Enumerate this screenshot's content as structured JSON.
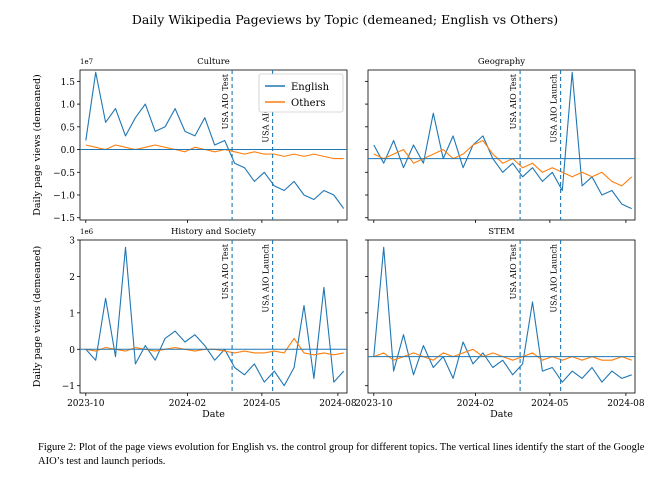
{
  "figure": {
    "suptitle": "Daily Wikipedia Pageviews by Topic (demeaned; English vs Others)",
    "caption": "Figure 2: Plot of the page views evolution for English vs. the control group for different topics. The vertical lines identify the start of the Google AIO’s test and launch periods.",
    "colors": {
      "english": "#1f77b4",
      "others": "#ff7f0e",
      "axis": "#000000"
    }
  },
  "chart_data": [
    {
      "type": "line",
      "title": "Culture",
      "xlabel": "",
      "ylabel": "Daily page views (demeaned)",
      "offset_text": "1e7",
      "xlim": [
        "2023-09-24",
        "2024-08-12"
      ],
      "ylim": [
        -1.55,
        1.75
      ],
      "yticks": [
        -1.5,
        -1.0,
        -0.5,
        0.0,
        0.5,
        1.0,
        1.5
      ],
      "ytick_labels": [
        "−1.5",
        "−1.0",
        "−0.5",
        "0.0",
        "0.5",
        "1.0",
        "1.5"
      ],
      "xticks": [
        "2023-10-01",
        "2024-02-01",
        "2024-05-01",
        "2024-08-01"
      ],
      "xtick_labels": [
        "2023-10",
        "2024-02",
        "2024-05",
        "2024-08"
      ],
      "show_xtick_labels": false,
      "hline": 0.0,
      "vlines": [
        {
          "x": "2024-03-26",
          "label": "USA AIO Test"
        },
        {
          "x": "2024-05-14",
          "label": "USA AIO Launch"
        }
      ],
      "legend": {
        "position": "upper-right",
        "entries": [
          "English",
          "Others"
        ]
      },
      "x": [
        "2023-10-01",
        "2023-10-13",
        "2023-10-25",
        "2023-11-06",
        "2023-11-18",
        "2023-11-30",
        "2023-12-12",
        "2023-12-24",
        "2024-01-05",
        "2024-01-17",
        "2024-01-29",
        "2024-02-10",
        "2024-02-22",
        "2024-03-05",
        "2024-03-17",
        "2024-03-29",
        "2024-04-10",
        "2024-04-22",
        "2024-05-04",
        "2024-05-16",
        "2024-05-28",
        "2024-06-09",
        "2024-06-21",
        "2024-07-03",
        "2024-07-15",
        "2024-07-27",
        "2024-08-08"
      ],
      "series": [
        {
          "name": "English",
          "values": [
            0.2,
            1.7,
            0.6,
            0.9,
            0.3,
            0.7,
            1.0,
            0.4,
            0.5,
            0.9,
            0.4,
            0.3,
            0.7,
            0.1,
            0.2,
            -0.3,
            -0.4,
            -0.7,
            -0.5,
            -0.8,
            -0.9,
            -0.7,
            -1.0,
            -1.1,
            -0.9,
            -1.0,
            -1.3
          ]
        },
        {
          "name": "Others",
          "values": [
            0.1,
            0.05,
            0.0,
            0.1,
            0.05,
            0.0,
            0.05,
            0.1,
            0.05,
            0.0,
            -0.05,
            0.05,
            0.0,
            -0.05,
            0.0,
            -0.05,
            -0.1,
            -0.05,
            -0.1,
            -0.1,
            -0.15,
            -0.1,
            -0.15,
            -0.1,
            -0.15,
            -0.2,
            -0.2
          ]
        }
      ]
    },
    {
      "type": "line",
      "title": "Geography",
      "xlabel": "",
      "ylabel": "",
      "offset_text": "",
      "xlim": [
        "2023-09-24",
        "2024-08-12"
      ],
      "ylim": [
        -1.55,
        1.75
      ],
      "yticks": [],
      "ytick_labels": [],
      "xticks": [
        "2023-10-01",
        "2024-02-01",
        "2024-05-01",
        "2024-08-01"
      ],
      "xtick_labels": [
        "2023-10",
        "2024-02",
        "2024-05",
        "2024-08"
      ],
      "show_xtick_labels": false,
      "hline": -0.2,
      "vlines": [
        {
          "x": "2024-03-26",
          "label": "USA AIO Test"
        },
        {
          "x": "2024-05-14",
          "label": "USA AIO Launch"
        }
      ],
      "legend": null,
      "x": [
        "2023-10-01",
        "2023-10-13",
        "2023-10-25",
        "2023-11-06",
        "2023-11-18",
        "2023-11-30",
        "2023-12-12",
        "2023-12-24",
        "2024-01-05",
        "2024-01-17",
        "2024-01-29",
        "2024-02-10",
        "2024-02-22",
        "2024-03-05",
        "2024-03-17",
        "2024-03-29",
        "2024-04-10",
        "2024-04-22",
        "2024-05-04",
        "2024-05-16",
        "2024-05-28",
        "2024-06-09",
        "2024-06-21",
        "2024-07-03",
        "2024-07-15",
        "2024-07-27",
        "2024-08-08"
      ],
      "series": [
        {
          "name": "English",
          "values": [
            0.1,
            -0.3,
            0.2,
            -0.4,
            0.1,
            -0.3,
            0.8,
            -0.2,
            0.3,
            -0.4,
            0.1,
            0.3,
            -0.2,
            -0.5,
            -0.3,
            -0.6,
            -0.4,
            -0.7,
            -0.5,
            -0.9,
            1.7,
            -0.8,
            -0.6,
            -1.0,
            -0.9,
            -1.2,
            -1.3
          ]
        },
        {
          "name": "Others",
          "values": [
            -0.1,
            -0.2,
            -0.1,
            0.0,
            -0.3,
            -0.2,
            -0.1,
            0.0,
            -0.2,
            -0.1,
            0.1,
            0.2,
            -0.1,
            -0.3,
            -0.2,
            -0.4,
            -0.3,
            -0.5,
            -0.4,
            -0.5,
            -0.6,
            -0.5,
            -0.6,
            -0.5,
            -0.7,
            -0.8,
            -0.6
          ]
        }
      ]
    },
    {
      "type": "line",
      "title": "History and Society",
      "xlabel": "Date",
      "ylabel": "Daily page views (demeaned)",
      "offset_text": "1e6",
      "xlim": [
        "2023-09-24",
        "2024-08-12"
      ],
      "ylim": [
        -1.2,
        3.0
      ],
      "yticks": [
        -1,
        0,
        1,
        2,
        3
      ],
      "ytick_labels": [
        "−1",
        "0",
        "1",
        "2",
        "3"
      ],
      "xticks": [
        "2023-10-01",
        "2024-02-01",
        "2024-05-01",
        "2024-08-01"
      ],
      "xtick_labels": [
        "2023-10",
        "2024-02",
        "2024-05",
        "2024-08"
      ],
      "show_xtick_labels": true,
      "hline": 0.0,
      "vlines": [
        {
          "x": "2024-03-26",
          "label": "USA AIO Test"
        },
        {
          "x": "2024-05-14",
          "label": "USA AIO Launch"
        }
      ],
      "legend": null,
      "x": [
        "2023-10-01",
        "2023-10-13",
        "2023-10-25",
        "2023-11-06",
        "2023-11-18",
        "2023-11-30",
        "2023-12-12",
        "2023-12-24",
        "2024-01-05",
        "2024-01-17",
        "2024-01-29",
        "2024-02-10",
        "2024-02-22",
        "2024-03-05",
        "2024-03-17",
        "2024-03-29",
        "2024-04-10",
        "2024-04-22",
        "2024-05-04",
        "2024-05-16",
        "2024-05-28",
        "2024-06-09",
        "2024-06-21",
        "2024-07-03",
        "2024-07-15",
        "2024-07-27",
        "2024-08-08"
      ],
      "series": [
        {
          "name": "English",
          "values": [
            0.0,
            -0.3,
            1.4,
            -0.2,
            2.8,
            -0.4,
            0.1,
            -0.3,
            0.3,
            0.5,
            0.2,
            0.4,
            0.1,
            -0.3,
            0.0,
            -0.5,
            -0.7,
            -0.4,
            -0.9,
            -0.6,
            -1.0,
            -0.5,
            1.2,
            -0.8,
            1.7,
            -0.9,
            -0.6
          ]
        },
        {
          "name": "Others",
          "values": [
            0.0,
            -0.05,
            0.05,
            0.0,
            -0.05,
            0.05,
            0.0,
            -0.05,
            0.0,
            0.05,
            0.0,
            -0.05,
            0.0,
            0.0,
            -0.05,
            -0.1,
            -0.05,
            -0.1,
            -0.1,
            -0.05,
            -0.1,
            0.3,
            -0.1,
            -0.15,
            -0.1,
            -0.15,
            -0.1
          ]
        }
      ]
    },
    {
      "type": "line",
      "title": "STEM",
      "xlabel": "Date",
      "ylabel": "",
      "offset_text": "",
      "xlim": [
        "2023-09-24",
        "2024-08-12"
      ],
      "ylim": [
        -1.2,
        3.0
      ],
      "yticks": [],
      "ytick_labels": [],
      "xticks": [
        "2023-10-01",
        "2024-02-01",
        "2024-05-01",
        "2024-08-01"
      ],
      "xtick_labels": [
        "2023-10",
        "2024-02",
        "2024-05",
        "2024-08"
      ],
      "show_xtick_labels": true,
      "hline": -0.2,
      "vlines": [
        {
          "x": "2024-03-26",
          "label": "USA AIO Test"
        },
        {
          "x": "2024-05-14",
          "label": "USA AIO Launch"
        }
      ],
      "legend": null,
      "x": [
        "2023-10-01",
        "2023-10-13",
        "2023-10-25",
        "2023-11-06",
        "2023-11-18",
        "2023-11-30",
        "2023-12-12",
        "2023-12-24",
        "2024-01-05",
        "2024-01-17",
        "2024-01-29",
        "2024-02-10",
        "2024-02-22",
        "2024-03-05",
        "2024-03-17",
        "2024-03-29",
        "2024-04-10",
        "2024-04-22",
        "2024-05-04",
        "2024-05-16",
        "2024-05-28",
        "2024-06-09",
        "2024-06-21",
        "2024-07-03",
        "2024-07-15",
        "2024-07-27",
        "2024-08-08"
      ],
      "series": [
        {
          "name": "English",
          "values": [
            -0.2,
            2.8,
            -0.6,
            0.4,
            -0.7,
            0.1,
            -0.5,
            -0.2,
            -0.8,
            0.2,
            -0.4,
            -0.1,
            -0.5,
            -0.3,
            -0.7,
            -0.4,
            1.3,
            -0.6,
            -0.5,
            -0.9,
            -0.6,
            -0.8,
            -0.5,
            -0.9,
            -0.6,
            -0.8,
            -0.7
          ]
        },
        {
          "name": "Others",
          "values": [
            -0.2,
            -0.1,
            -0.3,
            -0.2,
            -0.1,
            -0.2,
            -0.3,
            -0.1,
            -0.2,
            -0.1,
            0.0,
            -0.2,
            -0.1,
            -0.2,
            -0.3,
            -0.2,
            -0.1,
            -0.3,
            -0.2,
            -0.3,
            -0.2,
            -0.3,
            -0.2,
            -0.3,
            -0.3,
            -0.2,
            -0.3
          ]
        }
      ]
    }
  ]
}
